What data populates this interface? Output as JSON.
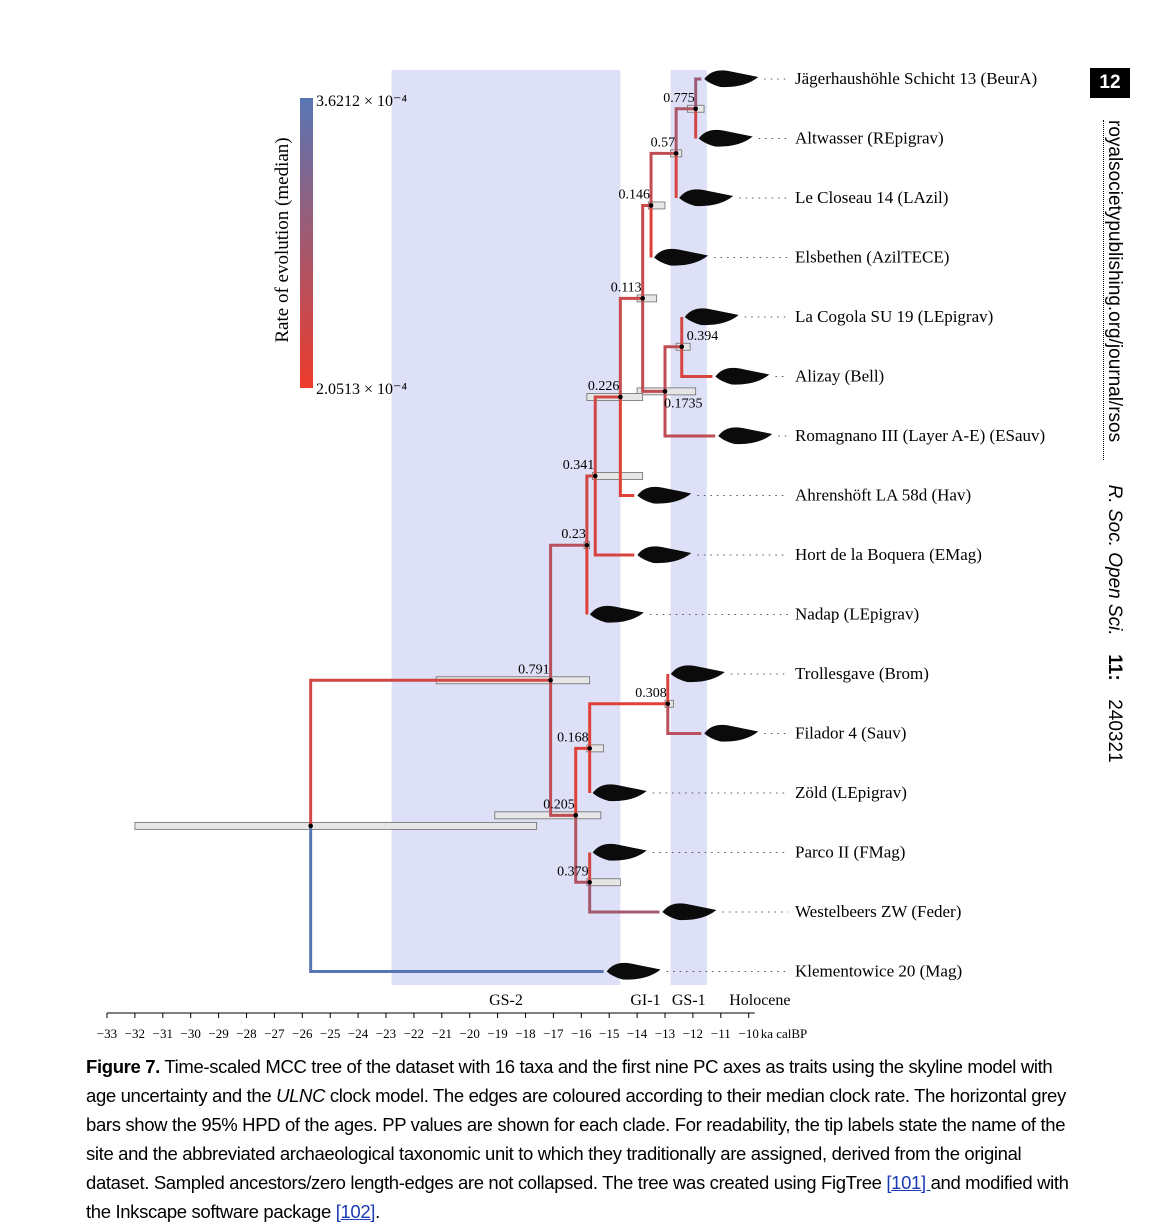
{
  "page_number": "12",
  "running_head": {
    "url": "royalsocietypublishing.org/journal/rsos",
    "journal": "R. Soc. Open Sci.",
    "volume": "11:",
    "article": "240321"
  },
  "colors": {
    "period_band": "#dde0f6",
    "rate_high": "#5876b4",
    "rate_low": "#ee3b2b",
    "hpd_bar": "#e6e6e6"
  },
  "figure": {
    "legend": {
      "title": "Rate of evolution (median)",
      "max_label": "3.6212 × 10⁻⁴",
      "min_label": "2.0513 × 10⁻⁴"
    },
    "periods": [
      {
        "label": "GS-2",
        "start": -22.8,
        "end": -14.6,
        "shaded": true
      },
      {
        "label": "GI-1",
        "start": -14.6,
        "end": -12.8,
        "shaded": false
      },
      {
        "label": "GS-1",
        "start": -12.8,
        "end": -11.5,
        "shaded": true
      },
      {
        "label": "Holocene",
        "start": -11.5,
        "end": -10,
        "shaded": false
      }
    ],
    "axis": {
      "ticks": [
        -33,
        -32,
        -31,
        -30,
        -29,
        -28,
        -27,
        -26,
        -25,
        -24,
        -23,
        -22,
        -21,
        -20,
        -19,
        -18,
        -17,
        -16,
        -15,
        -14,
        -13,
        -12,
        -11,
        -10
      ],
      "unit": "ka calBP",
      "range": [
        -33,
        -10
      ]
    },
    "taxa": [
      "Jägerhaushöhle Schicht 13 (BeurA)",
      "Altwasser (REpigrav)",
      "Le Closeau 14 (LAzil)",
      "Elsbethen (AzilTECE)",
      "La Cogola SU 19 (LEpigrav)",
      "Alizay (Bell)",
      "Romagnano III (Layer A-E) (ESauv)",
      "Ahrenshöft LA 58d (Hav)",
      "Hort de la Boquera (EMag)",
      "Nadap (LEpigrav)",
      "Trollesgave (Brom)",
      "Filador 4 (Sauv)",
      "Zöld (LEpigrav)",
      "Parco II (FMag)",
      "Westelbeers ZW (Feder)",
      "Klementowice 20 (Mag)"
    ],
    "pp_values": [
      "0.775",
      "0.57",
      "0.146",
      "0.113",
      "0.394",
      "0.1735",
      "0.226",
      "0.341",
      "0.23",
      "0.791",
      "0.308",
      "0.168",
      "0.205",
      "0.379"
    ]
  },
  "chart_data": {
    "type": "tree",
    "title": "",
    "x_axis": {
      "label": "ka calBP",
      "range": [
        -33,
        -10
      ]
    },
    "nodes": [
      {
        "id": "n775",
        "age": -11.9,
        "pp": 0.775,
        "hpd": [
          -12.2,
          -11.6
        ],
        "rate": 0.45
      },
      {
        "id": "n57",
        "age": -12.6,
        "pp": 0.57,
        "hpd": [
          -12.8,
          -12.4
        ],
        "rate": 0.3
      },
      {
        "id": "n146",
        "age": -13.5,
        "pp": 0.146,
        "hpd": [
          -13.6,
          -13.0
        ],
        "rate": 0.25
      },
      {
        "id": "n113",
        "age": -13.8,
        "pp": 0.113,
        "hpd": [
          -14.0,
          -13.3
        ],
        "rate": 0.25
      },
      {
        "id": "n394",
        "age": -12.4,
        "pp": 0.394,
        "hpd": [
          -12.6,
          -12.1
        ],
        "rate": 0.3
      },
      {
        "id": "n1735",
        "age": -13.0,
        "pp": 0.1735,
        "hpd": [
          -14.0,
          -11.9
        ],
        "rate": 0.3
      },
      {
        "id": "n226",
        "age": -14.6,
        "pp": 0.226,
        "hpd": [
          -15.8,
          -13.8
        ],
        "rate": 0.2
      },
      {
        "id": "n341",
        "age": -15.5,
        "pp": 0.341,
        "hpd": [
          -15.6,
          -13.8
        ],
        "rate": 0.2
      },
      {
        "id": "n23",
        "age": -15.8,
        "pp": 0.23,
        "hpd": [
          -15.9,
          -15.7
        ],
        "rate": 0.35
      },
      {
        "id": "n791",
        "age": -17.1,
        "pp": 0.791,
        "hpd": [
          -21.2,
          -15.7
        ],
        "rate": 0.2
      },
      {
        "id": "n308",
        "age": -12.9,
        "pp": 0.308,
        "hpd": [
          -13.0,
          -12.7
        ],
        "rate": 0.1
      },
      {
        "id": "n168",
        "age": -15.7,
        "pp": 0.168,
        "hpd": [
          -15.8,
          -15.2
        ],
        "rate": 0.1
      },
      {
        "id": "n205",
        "age": -16.2,
        "pp": 0.205,
        "hpd": [
          -19.1,
          -15.3
        ],
        "rate": 0.3
      },
      {
        "id": "n379",
        "age": -15.7,
        "pp": 0.379,
        "hpd": [
          -15.8,
          -14.6
        ],
        "rate": 0.4
      },
      {
        "id": "root",
        "age": -25.7,
        "pp": null,
        "hpd": [
          -32.0,
          -17.6
        ],
        "rate": null
      }
    ],
    "tips": [
      {
        "taxon": "Jägerhaushöhle Schicht 13 (BeurA)",
        "age": -11.7,
        "parent": "n775",
        "rate": 0.55
      },
      {
        "taxon": "Altwasser (REpigrav)",
        "age": -11.9,
        "parent": "n775",
        "rate": 0.2
      },
      {
        "taxon": "Le Closeau 14 (LAzil)",
        "age": -12.6,
        "parent": "n57",
        "rate": 0.15
      },
      {
        "taxon": "Elsbethen (AzilTECE)",
        "age": -13.5,
        "parent": "n146",
        "rate": 0.1
      },
      {
        "taxon": "La Cogola SU 19 (LEpigrav)",
        "age": -12.4,
        "parent": "n394",
        "rate": 0.2
      },
      {
        "taxon": "Alizay (Bell)",
        "age": -11.3,
        "parent": "n394",
        "rate": 0.15
      },
      {
        "taxon": "Romagnano III (Layer A-E) (ESauv)",
        "age": -11.2,
        "parent": "n1735",
        "rate": 0.3
      },
      {
        "taxon": "Ahrenshöft LA 58d (Hav)",
        "age": -14.1,
        "parent": "n226",
        "rate": 0.1
      },
      {
        "taxon": "Hort de la Boquera (EMag)",
        "age": -14.1,
        "parent": "n341",
        "rate": 0.15
      },
      {
        "taxon": "Nadap (LEpigrav)",
        "age": -15.8,
        "parent": "n23",
        "rate": 0.1
      },
      {
        "taxon": "Trollesgave (Brom)",
        "age": -12.9,
        "parent": "n308",
        "rate": 0.15
      },
      {
        "taxon": "Filador 4 (Sauv)",
        "age": -11.7,
        "parent": "n308",
        "rate": 0.35
      },
      {
        "taxon": "Zöld (LEpigrav)",
        "age": -15.7,
        "parent": "n168",
        "rate": 0.1
      },
      {
        "taxon": "Parco II (FMag)",
        "age": -15.7,
        "parent": "n379",
        "rate": 0.2
      },
      {
        "taxon": "Westelbeers ZW (Feder)",
        "age": -13.2,
        "parent": "n379",
        "rate": 0.5
      },
      {
        "taxon": "Klementowice 20 (Mag)",
        "age": -15.2,
        "parent": "root",
        "rate": 1.0
      }
    ],
    "edges": [
      {
        "child": "n775",
        "parent": "n57"
      },
      {
        "child": "n57",
        "parent": "n146"
      },
      {
        "child": "n146",
        "parent": "n113"
      },
      {
        "child": "n113",
        "parent": "n226"
      },
      {
        "child": "n394",
        "parent": "n1735"
      },
      {
        "child": "n1735",
        "parent": "n113"
      },
      {
        "child": "n226",
        "parent": "n341"
      },
      {
        "child": "n341",
        "parent": "n23"
      },
      {
        "child": "n23",
        "parent": "n791"
      },
      {
        "child": "n791",
        "parent": "root"
      },
      {
        "child": "n308",
        "parent": "n168"
      },
      {
        "child": "n168",
        "parent": "n205"
      },
      {
        "child": "n205",
        "parent": "n791"
      },
      {
        "child": "n379",
        "parent": "n205"
      }
    ]
  },
  "caption": {
    "label": "Figure 7.",
    "text_1": " Time-scaled MCC tree of the dataset with 16 taxa and the first nine PC axes as traits using the skyline model with age uncertainty and the ",
    "italic": "ULNC",
    "text_2": " clock model. The edges are coloured according to their median clock rate. The horizontal grey bars show the 95% HPD of the ages. PP values are shown for each clade. For readability, the tip labels state the name of the site and the abbreviated archaeological taxonomic unit to which they traditionally are assigned, derived from the original dataset. Sampled ancestors/zero length-edges are not collapsed. The tree was created using FigTree ",
    "ref_1": "[101] ",
    "text_3": "and modified with the Inkscape software package ",
    "ref_2": "[102]",
    "text_4": "."
  }
}
